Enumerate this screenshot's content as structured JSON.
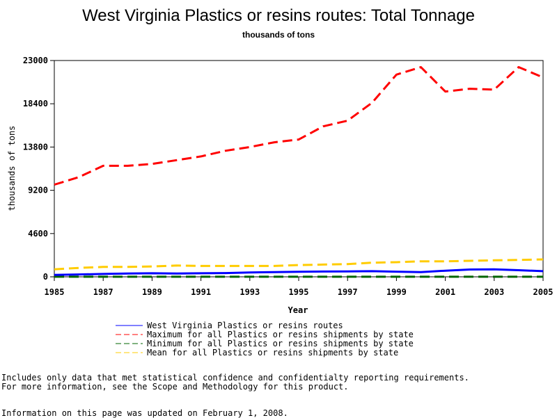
{
  "chart_data": {
    "type": "line",
    "title": "West Virginia Plastics or resins routes: Total Tonnage",
    "subtitle": "thousands of tons",
    "xlabel": "Year",
    "ylabel": "thousands of tons",
    "xlim": [
      1985,
      2005
    ],
    "ylim": [
      0,
      23000
    ],
    "x_ticks": [
      "1985",
      "1987",
      "1989",
      "1991",
      "1993",
      "1995",
      "1997",
      "1999",
      "2001",
      "2003",
      "2005"
    ],
    "y_ticks": [
      "0",
      "4600",
      "9200",
      "13800",
      "18400",
      "23000"
    ],
    "x": [
      1985,
      1986,
      1987,
      1988,
      1989,
      1990,
      1991,
      1992,
      1993,
      1994,
      1995,
      1996,
      1997,
      1998,
      1999,
      2000,
      2001,
      2002,
      2003,
      2004,
      2005
    ],
    "grid": false,
    "legend_position": "bottom",
    "series": [
      {
        "name": "West Virginia Plastics or resins routes",
        "color": "#0000ff",
        "dash": "solid",
        "values": [
          200,
          250,
          300,
          350,
          380,
          350,
          380,
          400,
          460,
          500,
          540,
          560,
          580,
          600,
          550,
          500,
          650,
          780,
          800,
          700,
          600
        ]
      },
      {
        "name": "Maximum for all Plastics or resins shipments by state",
        "color": "#ff0000",
        "dash": "dashed",
        "values": [
          9800,
          10600,
          11800,
          11800,
          12000,
          12400,
          12800,
          13400,
          13800,
          14300,
          14600,
          16000,
          16600,
          18500,
          21500,
          22300,
          19700,
          20000,
          19900,
          22300,
          21200
        ]
      },
      {
        "name": "Minimum for all Plastics or resins shipments by state",
        "color": "#006400",
        "dash": "dashed",
        "values": [
          10,
          10,
          10,
          10,
          10,
          10,
          10,
          10,
          10,
          10,
          10,
          10,
          10,
          10,
          10,
          10,
          10,
          10,
          10,
          10,
          10
        ]
      },
      {
        "name": "Mean for all Plastics or resins shipments by state",
        "color": "#ffcc00",
        "dash": "dashed",
        "values": [
          800,
          950,
          1050,
          1050,
          1100,
          1200,
          1150,
          1150,
          1150,
          1150,
          1250,
          1300,
          1350,
          1500,
          1550,
          1650,
          1650,
          1700,
          1750,
          1800,
          1850
        ]
      }
    ]
  },
  "footnotes": {
    "line1": "Includes only data that met statistical confidence and confidentialty reporting requirements.",
    "line2": "For more information, see the Scope and Methodology for this product.",
    "updated": "Information on this page was updated on February 1, 2008."
  }
}
